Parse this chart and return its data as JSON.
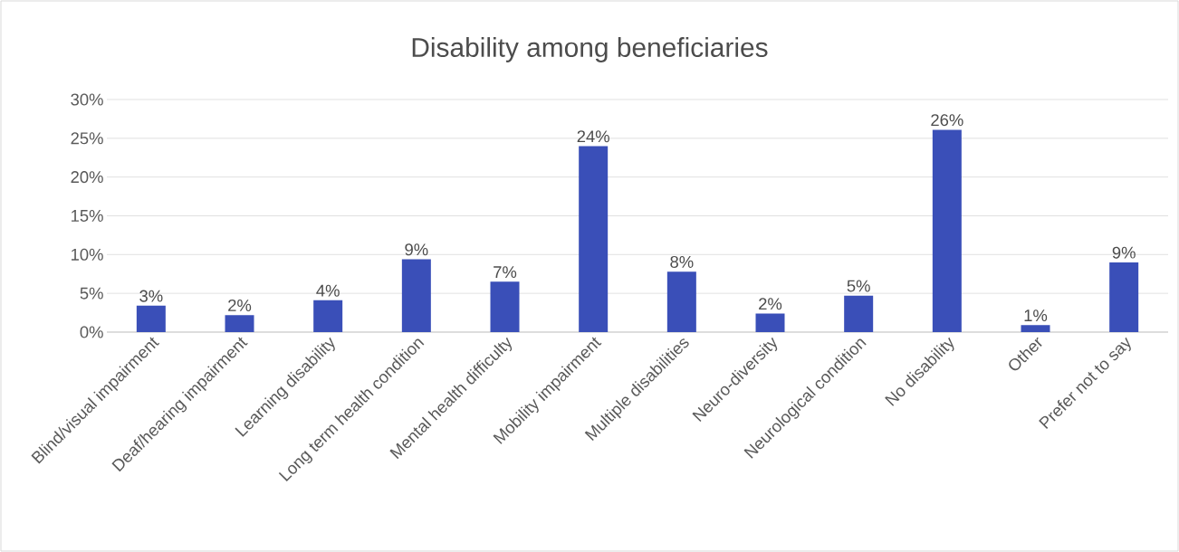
{
  "chart_data": {
    "type": "bar",
    "title": "Disability among beneficiaries",
    "categories": [
      "Blind/visual impairment",
      "Deaf/hearing impairment",
      "Learning disability",
      "Long term health condition",
      "Mental health difficulty",
      "Mobility impairment",
      "Multiple disabilities",
      "Neuro-diversity",
      "Neurological condition",
      "No disability",
      "Other",
      "Prefer not to say"
    ],
    "values": [
      3.4,
      2.2,
      4.1,
      9.4,
      6.5,
      24.0,
      7.8,
      2.4,
      4.7,
      26.1,
      0.9,
      9.0
    ],
    "value_labels": [
      "3%",
      "2%",
      "4%",
      "9%",
      "7%",
      "24%",
      "8%",
      "2%",
      "5%",
      "26%",
      "1%",
      "9%"
    ],
    "color": "#3a4fb8",
    "ylim": [
      0,
      30
    ],
    "yticks": [
      {
        "value": 0,
        "label": "0%"
      },
      {
        "value": 5,
        "label": "5%"
      },
      {
        "value": 10,
        "label": "10%"
      },
      {
        "value": 15,
        "label": "15%"
      },
      {
        "value": 20,
        "label": "20%"
      },
      {
        "value": 25,
        "label": "25%"
      },
      {
        "value": 30,
        "label": "30%"
      }
    ],
    "grid": "y"
  }
}
